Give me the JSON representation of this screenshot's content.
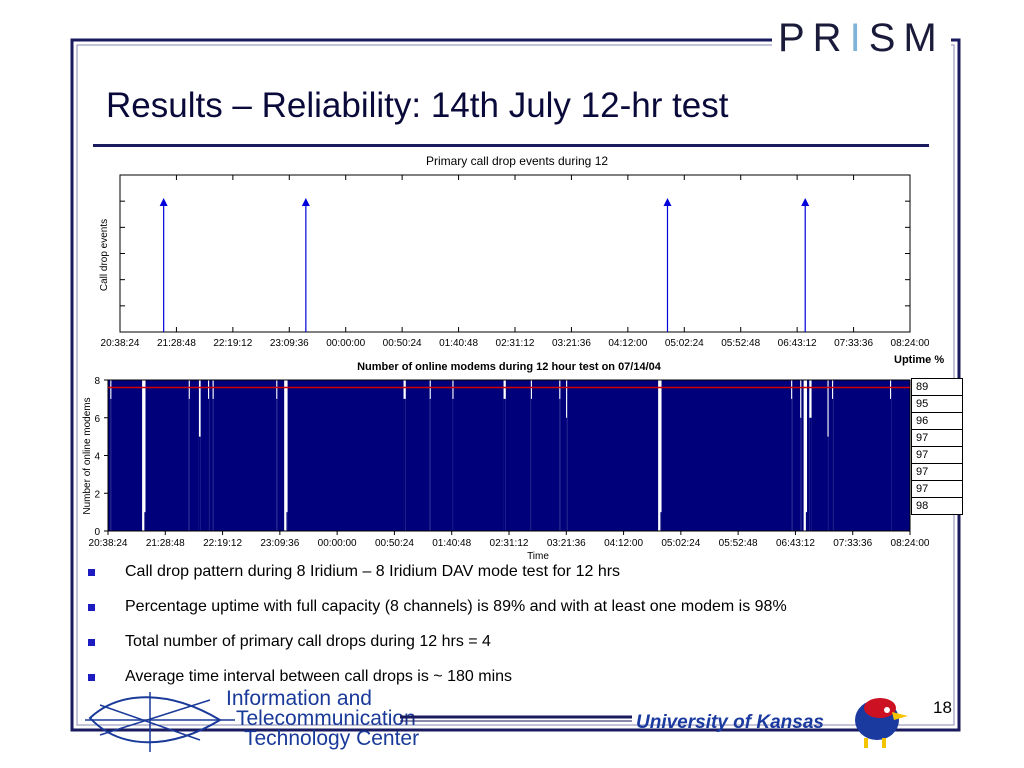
{
  "slide": {
    "title": "Results – Reliability: 14th July 12-hr test",
    "logo": {
      "before": "PR",
      "i": "I",
      "after": "SM"
    },
    "page_number": "18",
    "bullets": [
      "Call drop pattern during 8 Iridium – 8 Iridium DAV mode test for 12 hrs",
      "Percentage uptime with full capacity (8 channels) is 89% and with at least one modem is 98%",
      "Total number of primary call drops during 12 hrs = 4",
      "Average time interval between call drops is ~ 180 mins"
    ],
    "footer": {
      "ittc_lines": [
        "Information and",
        "Telecommunication",
        "Technology Center"
      ],
      "university": "University of Kansas"
    },
    "colors": {
      "accent": "#1a1a5e",
      "bullet": "#1c1cc0",
      "fill": "#00007a",
      "stem": "#0000dd",
      "threshold": "#d00000"
    }
  },
  "uptime": {
    "title": "Uptime %",
    "values": [
      "89",
      "95",
      "96",
      "97",
      "97",
      "97",
      "97",
      "98"
    ]
  },
  "chart_data": [
    {
      "type": "stem",
      "title": "Primary call drop events during 12",
      "xlabel": "",
      "ylabel": "Call drop events",
      "x_ticks": [
        "20:38:24",
        "21:28:48",
        "22:19:12",
        "23:09:36",
        "00:00:00",
        "00:50:24",
        "01:40:48",
        "02:31:12",
        "03:21:36",
        "04:12:00",
        "05:02:24",
        "05:52:48",
        "06:43:12",
        "07:33:36",
        "08:24:00"
      ],
      "xlim_min": [
        0,
        705.6
      ],
      "events_min": [
        39,
        166,
        489,
        612
      ],
      "event_value": 1,
      "grid": false
    },
    {
      "type": "area",
      "title": "Number of online modems during 12 hour test on 07/14/04",
      "xlabel": "Time",
      "ylabel": "Number of online modems",
      "x_ticks": [
        "20:38:24",
        "21:28:48",
        "22:19:12",
        "23:09:36",
        "00:00:00",
        "00:50:24",
        "01:40:48",
        "02:31:12",
        "03:21:36",
        "04:12:00",
        "05:02:24",
        "05:52:48",
        "06:43:12",
        "07:33:36",
        "08:24:00"
      ],
      "y_ticks": [
        "0",
        "2",
        "4",
        "6",
        "8"
      ],
      "xlim_min": [
        0,
        705.6
      ],
      "ylim": [
        0,
        8
      ],
      "threshold": 7.6,
      "baseline": 8,
      "dips": [
        {
          "start": 2,
          "end": 3,
          "value": 7
        },
        {
          "start": 30,
          "end": 32,
          "value": 0
        },
        {
          "start": 32,
          "end": 33,
          "value": 1
        },
        {
          "start": 71,
          "end": 72,
          "value": 7
        },
        {
          "start": 80,
          "end": 81.5,
          "value": 5
        },
        {
          "start": 88,
          "end": 89,
          "value": 7
        },
        {
          "start": 92,
          "end": 93,
          "value": 7
        },
        {
          "start": 148,
          "end": 149,
          "value": 7
        },
        {
          "start": 155,
          "end": 157,
          "value": 0
        },
        {
          "start": 157,
          "end": 158,
          "value": 1
        },
        {
          "start": 260,
          "end": 262,
          "value": 7
        },
        {
          "start": 283,
          "end": 284,
          "value": 7
        },
        {
          "start": 303,
          "end": 304,
          "value": 7
        },
        {
          "start": 348,
          "end": 350,
          "value": 7
        },
        {
          "start": 372,
          "end": 373,
          "value": 7
        },
        {
          "start": 397,
          "end": 398,
          "value": 7
        },
        {
          "start": 403,
          "end": 404,
          "value": 6
        },
        {
          "start": 484,
          "end": 486,
          "value": 0
        },
        {
          "start": 486,
          "end": 487,
          "value": 1
        },
        {
          "start": 601,
          "end": 602,
          "value": 7
        },
        {
          "start": 609,
          "end": 610,
          "value": 6
        },
        {
          "start": 612,
          "end": 614,
          "value": 0
        },
        {
          "start": 614,
          "end": 615,
          "value": 1
        },
        {
          "start": 617,
          "end": 619,
          "value": 6
        },
        {
          "start": 633,
          "end": 634,
          "value": 5
        },
        {
          "start": 637,
          "end": 638,
          "value": 7
        },
        {
          "start": 688,
          "end": 689,
          "value": 7
        }
      ],
      "grid": false
    }
  ]
}
